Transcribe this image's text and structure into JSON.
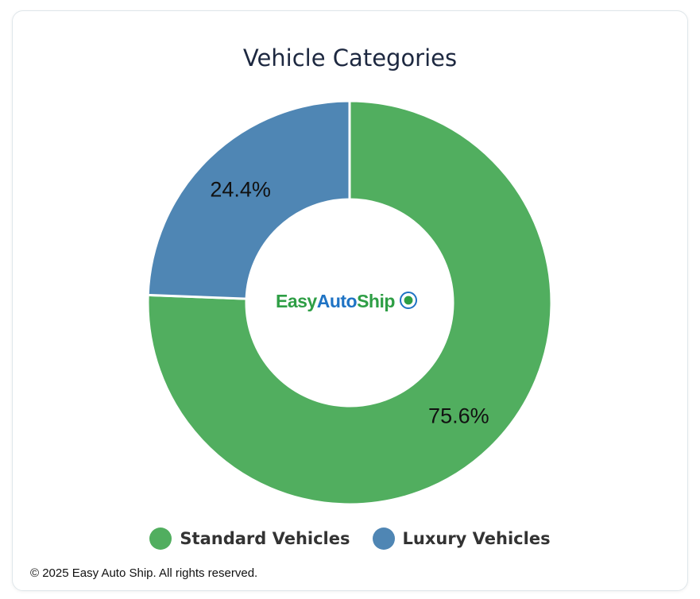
{
  "chart_data": {
    "type": "pie",
    "title": "Vehicle Categories",
    "categories": [
      "Standard Vehicles",
      "Luxury Vehicles"
    ],
    "values": [
      75.6,
      24.4
    ],
    "labels": [
      "75.6%",
      "24.4%"
    ],
    "colors": [
      "#51ae5f",
      "#4f86b4"
    ],
    "donut": true,
    "legend": "bottom"
  },
  "logo": {
    "part1": "Easy",
    "part2": "Auto",
    "part3": "Ship",
    "colors": [
      "#2e9e45",
      "#1f73c4"
    ]
  },
  "footer": "© 2025 Easy Auto Ship. All rights reserved."
}
